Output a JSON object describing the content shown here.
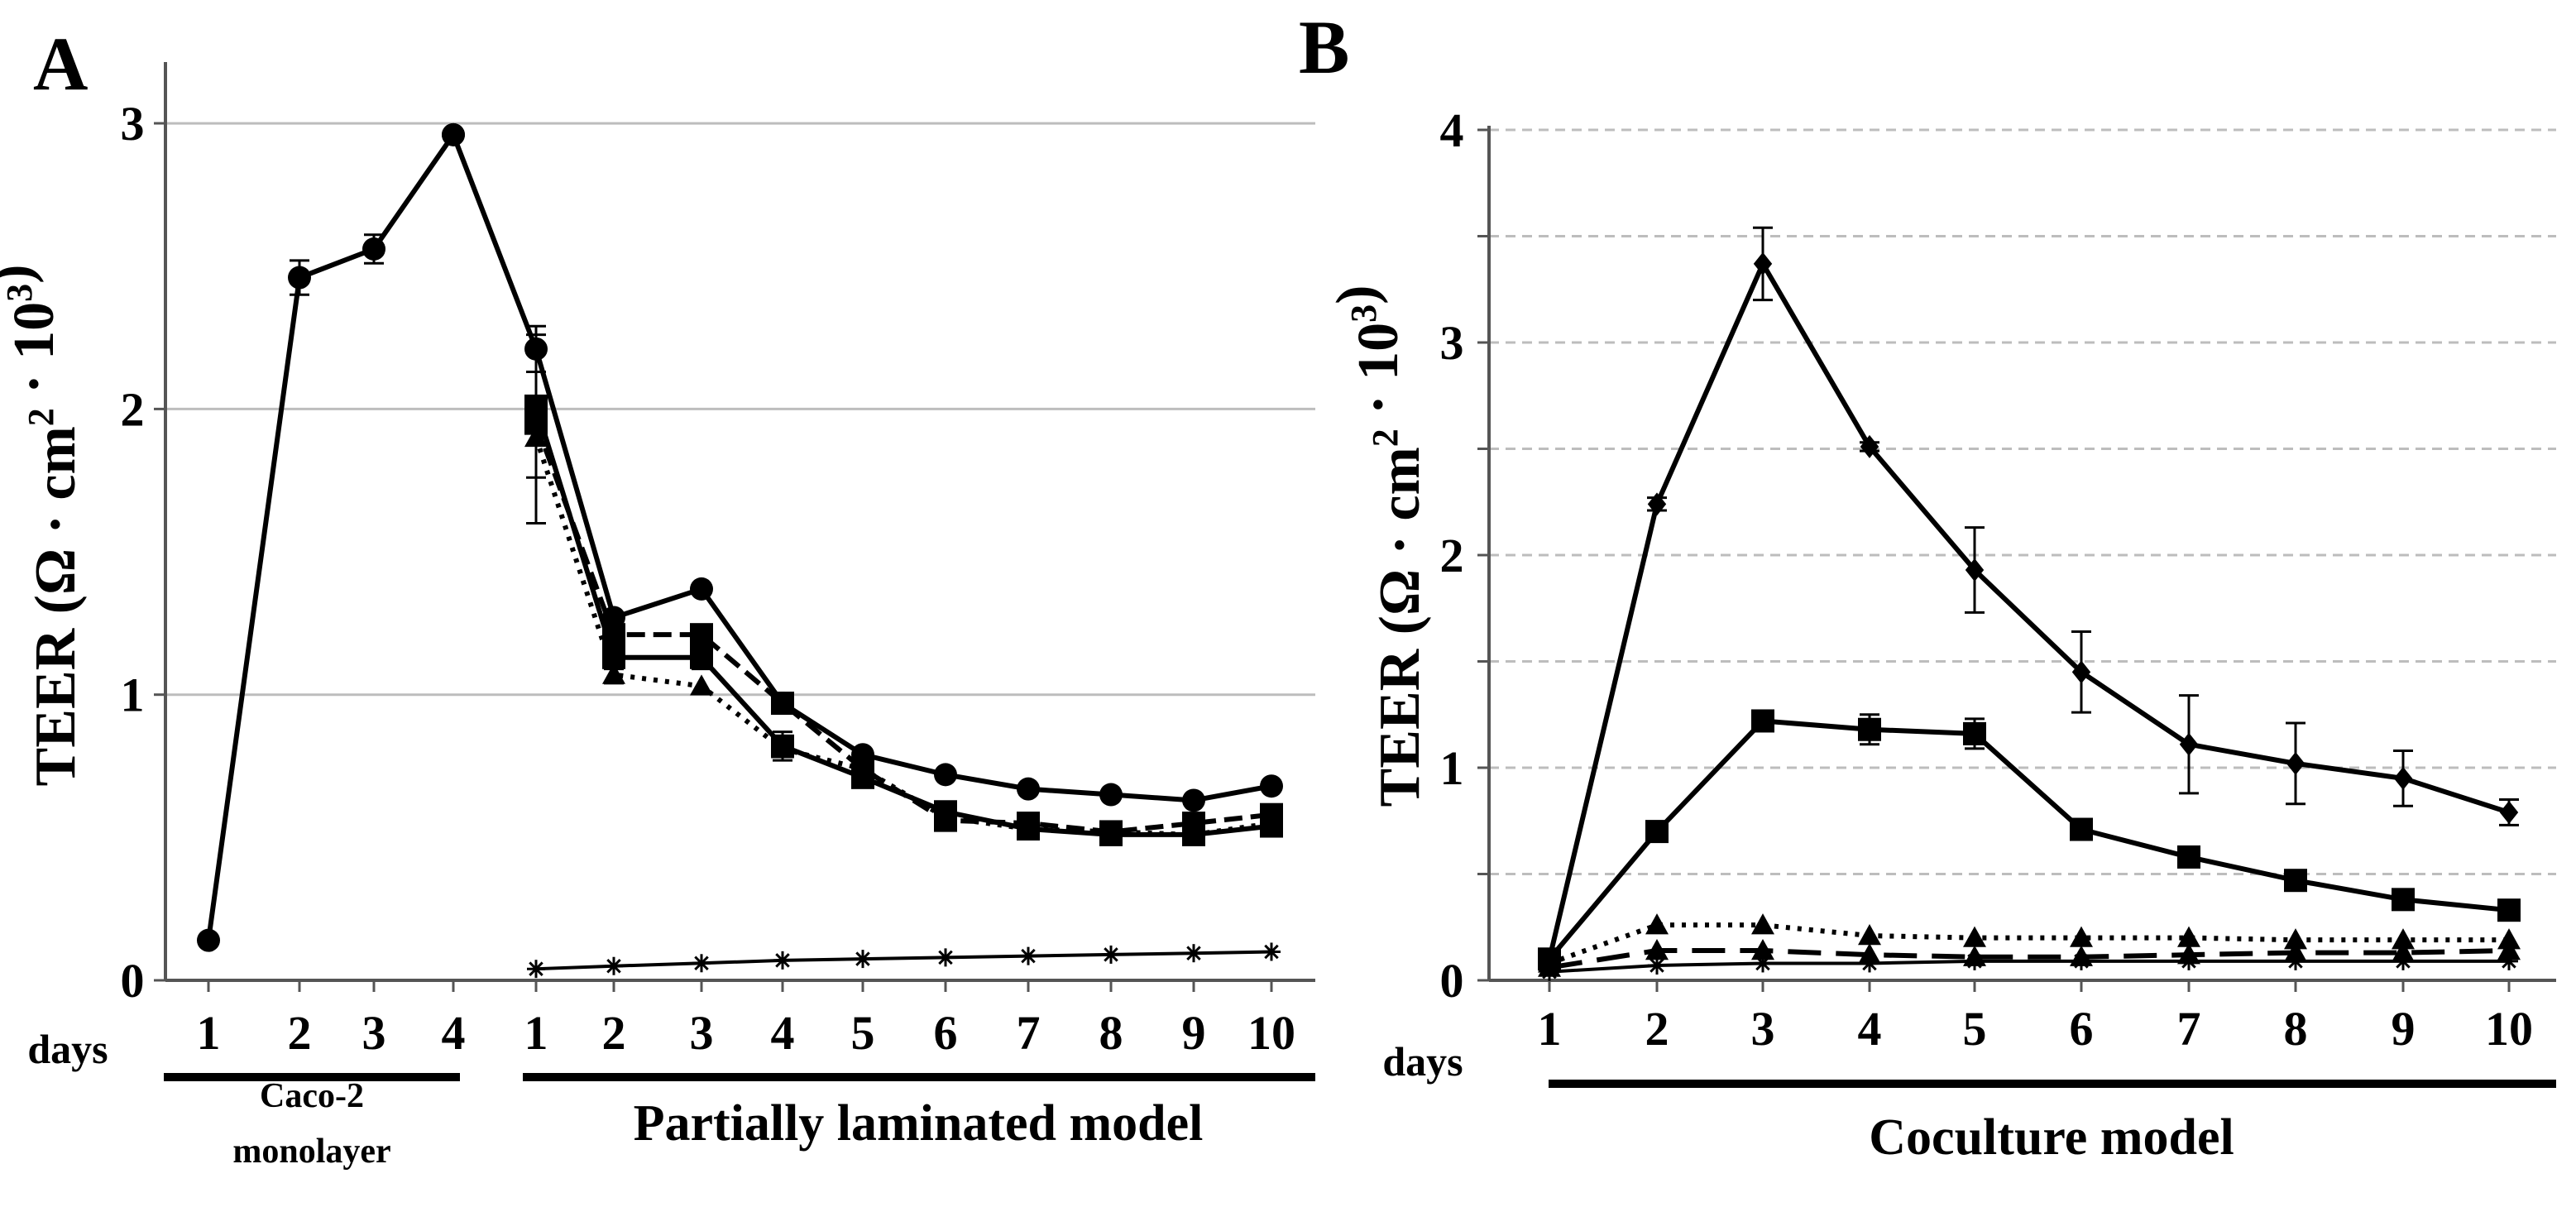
{
  "chart_data": [
    {
      "panel": "A",
      "type": "line",
      "ylabel_text": "TEER (Ω · cm",
      "ylabel_sup1": "2",
      "ylabel_mid": " · 10",
      "ylabel_sup2": "3",
      "ylabel_end": ")",
      "ylim": [
        0,
        3.2
      ],
      "yticks": [
        "0",
        "1",
        "2",
        "3"
      ],
      "ytick_values": [
        0,
        1,
        2,
        3
      ],
      "grid": "solid",
      "days_label": "days",
      "categories": [
        "1",
        "2",
        "3",
        "4",
        "1",
        "2",
        "3",
        "4",
        "5",
        "6",
        "7",
        "8",
        "9",
        "10"
      ],
      "groups": [
        {
          "label_lines": [
            "Caco-2",
            "monolayer"
          ],
          "from": 0,
          "to": 3
        },
        {
          "label_lines": [
            "Partially laminated model"
          ],
          "from": 4,
          "to": 13
        }
      ],
      "series": [
        {
          "name": "caco2-monolayer",
          "marker": "circle",
          "dash": "solid",
          "x": [
            0,
            1,
            2,
            3
          ],
          "values": [
            0.14,
            2.46,
            2.56,
            2.96
          ],
          "err": [
            0,
            0.06,
            0.05,
            0
          ]
        },
        {
          "name": "partially-laminated-circle",
          "marker": "circle",
          "dash": "solid",
          "x": [
            3,
            4,
            5,
            6,
            7,
            8,
            9,
            10,
            11,
            12,
            13
          ],
          "values": [
            2.96,
            2.21,
            1.27,
            1.37,
            0.97,
            0.79,
            0.72,
            0.67,
            0.65,
            0.63,
            0.68
          ],
          "err": [
            0,
            0.08,
            0,
            0,
            0,
            0,
            0,
            0,
            0,
            0,
            0
          ]
        },
        {
          "name": "partially-laminated-square-solid",
          "marker": "square",
          "dash": "solid",
          "x": [
            4,
            5,
            6,
            7,
            8,
            9,
            10,
            11,
            12,
            13
          ],
          "values": [
            2.01,
            1.13,
            1.13,
            0.82,
            0.71,
            0.59,
            0.53,
            0.51,
            0.51,
            0.54
          ],
          "err": [
            0.25,
            0.04,
            0.04,
            0.05,
            0,
            0,
            0,
            0,
            0,
            0
          ]
        },
        {
          "name": "partially-laminated-square-dash",
          "marker": "square",
          "dash": "dash",
          "x": [
            4,
            5,
            6,
            7,
            8,
            9,
            10,
            11,
            12,
            13
          ],
          "values": [
            1.95,
            1.21,
            1.21,
            0.97,
            0.74,
            0.56,
            0.55,
            0.52,
            0.55,
            0.58
          ],
          "err": [
            0,
            0,
            0,
            0,
            0,
            0,
            0,
            0,
            0,
            0
          ]
        },
        {
          "name": "partially-laminated-triangle",
          "marker": "triangle",
          "dash": "dot",
          "x": [
            4,
            5,
            6,
            7,
            8,
            9,
            10,
            11,
            12,
            13
          ],
          "values": [
            1.9,
            1.07,
            1.03,
            0.81,
            0.74,
            0.57,
            0.53,
            0.52,
            0.51,
            0.55
          ],
          "err": [
            0.3,
            0.03,
            0,
            0,
            0,
            0,
            0,
            0,
            0,
            0
          ]
        },
        {
          "name": "partially-laminated-asterisk",
          "marker": "asterisk",
          "dash": "solid",
          "x": [
            4,
            5,
            6,
            7,
            8,
            9,
            10,
            11,
            12,
            13
          ],
          "values": [
            0.04,
            0.05,
            0.06,
            0.07,
            0.075,
            0.08,
            0.085,
            0.09,
            0.095,
            0.1
          ],
          "err": [
            0,
            0,
            0,
            0,
            0,
            0,
            0,
            0,
            0,
            0
          ]
        }
      ]
    },
    {
      "panel": "B",
      "type": "line",
      "ylabel_text": "TEER (Ω · cm",
      "ylabel_sup1": "2",
      "ylabel_mid": " · 10",
      "ylabel_sup2": "3",
      "ylabel_end": ")",
      "ylim": [
        0,
        4
      ],
      "yticks": [
        "0",
        "1",
        "2",
        "3",
        "4"
      ],
      "ytick_values": [
        0,
        1,
        2,
        3,
        4
      ],
      "grid": "dashed",
      "days_label": "days",
      "categories": [
        "1",
        "2",
        "3",
        "4",
        "5",
        "6",
        "7",
        "8",
        "9",
        "10"
      ],
      "groups": [
        {
          "label_lines": [
            "Coculture model"
          ],
          "from": 0,
          "to": 9
        }
      ],
      "series": [
        {
          "name": "coculture-diamond",
          "marker": "diamond",
          "dash": "solid",
          "x": [
            0,
            1,
            2,
            3,
            4,
            5,
            6,
            7,
            8,
            9
          ],
          "values": [
            0.1,
            2.24,
            3.37,
            2.51,
            1.93,
            1.45,
            1.11,
            1.02,
            0.95,
            0.79
          ],
          "err": [
            0,
            0.03,
            0.17,
            0.02,
            0.2,
            0.19,
            0.23,
            0.19,
            0.13,
            0.06
          ]
        },
        {
          "name": "coculture-square",
          "marker": "square",
          "dash": "solid",
          "x": [
            0,
            1,
            2,
            3,
            4,
            5,
            6,
            7,
            8,
            9
          ],
          "values": [
            0.1,
            0.7,
            1.22,
            1.18,
            1.16,
            0.71,
            0.58,
            0.47,
            0.38,
            0.33
          ],
          "err": [
            0,
            0,
            0.03,
            0.07,
            0.07,
            0,
            0,
            0,
            0,
            0
          ]
        },
        {
          "name": "coculture-triangle",
          "marker": "triangle",
          "dash": "dot",
          "x": [
            0,
            1,
            2,
            3,
            4,
            5,
            6,
            7,
            8,
            9
          ],
          "values": [
            0.08,
            0.26,
            0.26,
            0.21,
            0.2,
            0.2,
            0.2,
            0.19,
            0.19,
            0.19
          ],
          "err": [
            0,
            0,
            0,
            0,
            0,
            0,
            0,
            0,
            0,
            0
          ]
        },
        {
          "name": "coculture-longdash",
          "marker": "triangle",
          "dash": "longdash",
          "x": [
            0,
            1,
            2,
            3,
            4,
            5,
            6,
            7,
            8,
            9
          ],
          "values": [
            0.06,
            0.14,
            0.14,
            0.12,
            0.11,
            0.11,
            0.12,
            0.13,
            0.13,
            0.14
          ],
          "err": [
            0,
            0,
            0,
            0,
            0,
            0,
            0,
            0,
            0,
            0
          ]
        },
        {
          "name": "coculture-asterisk",
          "marker": "asterisk",
          "dash": "solid",
          "x": [
            0,
            1,
            2,
            3,
            4,
            5,
            6,
            7,
            8,
            9
          ],
          "values": [
            0.04,
            0.07,
            0.08,
            0.08,
            0.09,
            0.09,
            0.09,
            0.09,
            0.09,
            0.09
          ],
          "err": [
            0,
            0,
            0,
            0,
            0,
            0,
            0,
            0,
            0,
            0
          ]
        }
      ]
    }
  ]
}
